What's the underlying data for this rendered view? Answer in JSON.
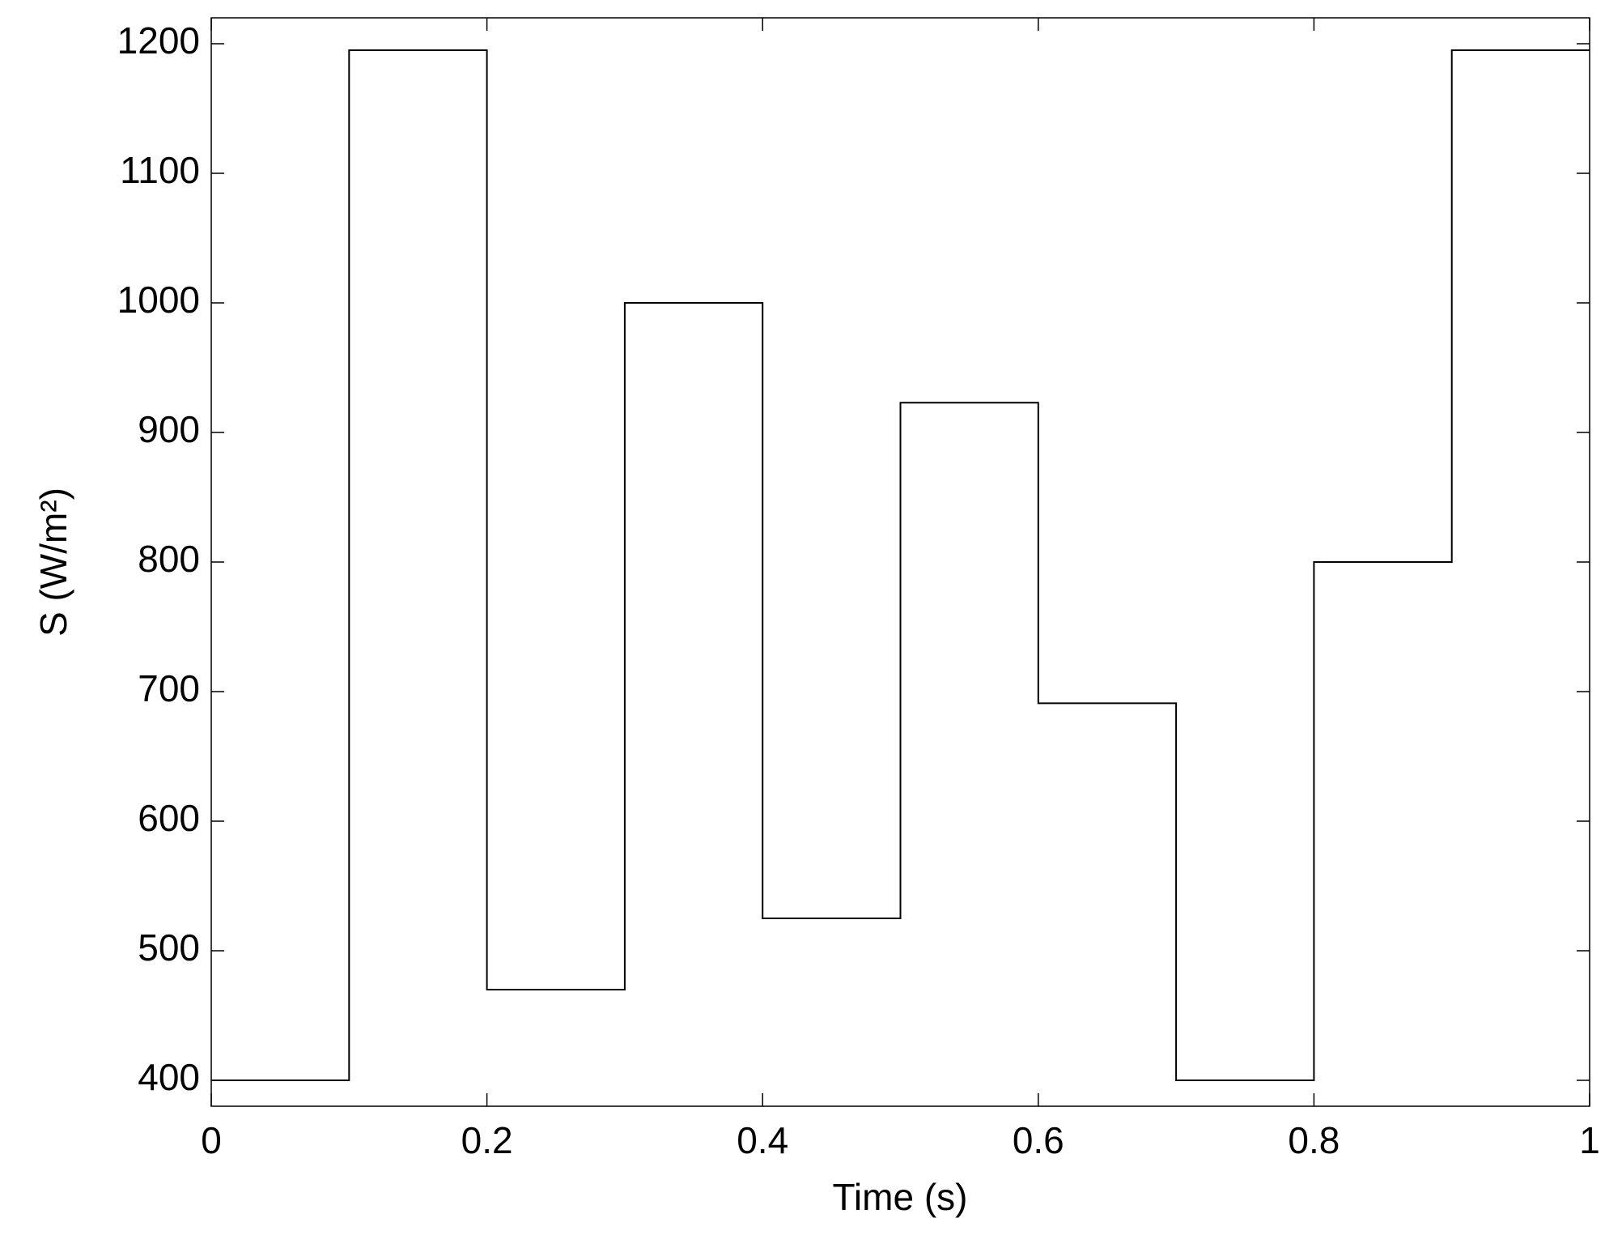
{
  "chart_data": {
    "type": "line",
    "xlabel": "Time (s)",
    "ylabel": "S (W/m²)",
    "x": [
      0,
      0.1,
      0.1,
      0.2,
      0.2,
      0.3,
      0.3,
      0.4,
      0.4,
      0.5,
      0.5,
      0.6,
      0.6,
      0.7,
      0.7,
      0.8,
      0.8,
      0.9,
      0.9,
      1
    ],
    "series": [
      {
        "color": "#000000",
        "values": [
          400,
          400,
          1195,
          1195,
          470,
          470,
          1000,
          1000,
          525,
          525,
          923,
          923,
          691,
          691,
          400,
          400,
          800,
          800,
          1195,
          1195
        ]
      }
    ],
    "xlim": [
      0,
      1
    ],
    "ylim": [
      380,
      1220
    ],
    "xticks": [
      0,
      0.2,
      0.4,
      0.6,
      0.8,
      1
    ],
    "yticks": [
      400,
      500,
      600,
      700,
      800,
      900,
      1000,
      1100,
      1200
    ],
    "grid": false
  }
}
